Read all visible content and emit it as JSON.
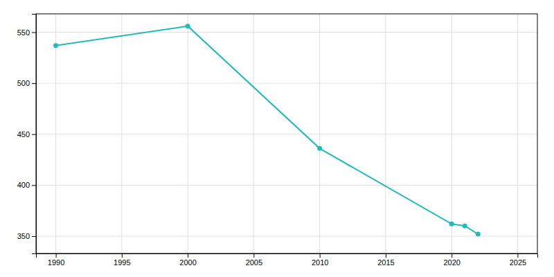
{
  "chart_data": {
    "type": "line",
    "x": [
      1990,
      2000,
      2010,
      2020,
      2021,
      2022
    ],
    "values": [
      537,
      556,
      436,
      362,
      360,
      352
    ],
    "color": "#22BBBB",
    "marker": "circle",
    "xlim": [
      1988.5,
      2026.5
    ],
    "ylim": [
      333,
      568
    ],
    "xticks": [
      1990,
      1995,
      2000,
      2005,
      2010,
      2015,
      2020,
      2025
    ],
    "yticks": [
      350,
      400,
      450,
      500,
      550
    ],
    "grid": true
  }
}
